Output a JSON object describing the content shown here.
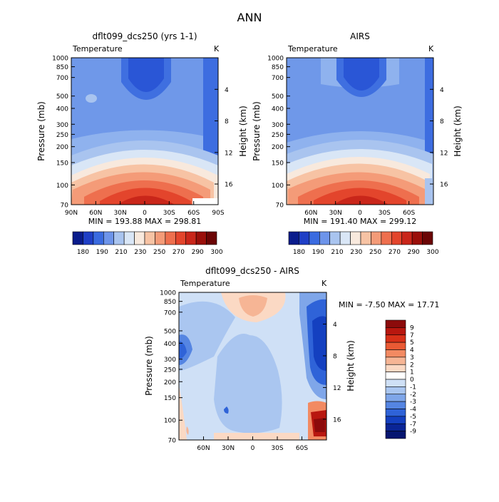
{
  "chart_data": [
    {
      "type": "heatmap",
      "title": "dflt099_dcs250 (yrs 1-1)",
      "field_label": "Temperature",
      "units": "K",
      "ylabel": "Pressure (mb)",
      "ylabel2": "Height (km)",
      "pressure_ticks": [
        "70",
        "100",
        "150",
        "200",
        "250",
        "300",
        "400",
        "500",
        "700",
        "850",
        "1000"
      ],
      "height_ticks": [
        "4",
        "8",
        "12",
        "16"
      ],
      "lat_ticks": [
        "90N",
        "60N",
        "30N",
        "0",
        "30S",
        "60S",
        "90S"
      ],
      "min": "193.88",
      "max": "298.81",
      "stats": "MIN = 193.88   MAX = 298.81",
      "colorbar_labels": [
        "180",
        "190",
        "210",
        "230",
        "250",
        "270",
        "290",
        "300"
      ],
      "colorbar_colors": [
        "#0a1c8c",
        "#1f3fc6",
        "#3a6be0",
        "#6d94ea",
        "#a9c4ef",
        "#d9e6f6",
        "#f8e9dd",
        "#f7c3a4",
        "#f49b78",
        "#ee6f4e",
        "#e3452c",
        "#c9261a",
        "#9a0f0a",
        "#6b0505"
      ]
    },
    {
      "type": "heatmap",
      "title": "AIRS",
      "field_label": "Temperature",
      "units": "K",
      "ylabel": "Pressure (mb)",
      "ylabel2": "Height (km)",
      "pressure_ticks": [
        "70",
        "100",
        "150",
        "200",
        "250",
        "300",
        "400",
        "500",
        "700",
        "850",
        "1000"
      ],
      "height_ticks": [
        "4",
        "8",
        "12",
        "16"
      ],
      "lat_ticks": [
        "60N",
        "30N",
        "0",
        "30S",
        "60S"
      ],
      "min": "191.40",
      "max": "299.12",
      "stats": "MIN = 191.40   MAX = 299.12",
      "colorbar_labels": [
        "180",
        "190",
        "210",
        "230",
        "250",
        "270",
        "290",
        "300"
      ],
      "colorbar_colors": [
        "#0a1c8c",
        "#1f3fc6",
        "#3a6be0",
        "#6d94ea",
        "#a9c4ef",
        "#d9e6f6",
        "#f8e9dd",
        "#f7c3a4",
        "#f49b78",
        "#ee6f4e",
        "#e3452c",
        "#c9261a",
        "#9a0f0a",
        "#6b0505"
      ]
    },
    {
      "type": "heatmap",
      "title": "dflt099_dcs250 - AIRS",
      "field_label": "Temperature",
      "units": "K",
      "ylabel": "Pressure (mb)",
      "ylabel2": "Height (km)",
      "pressure_ticks": [
        "70",
        "100",
        "150",
        "200",
        "250",
        "300",
        "400",
        "500",
        "700",
        "850",
        "1000"
      ],
      "height_ticks": [
        "4",
        "8",
        "12",
        "16"
      ],
      "lat_ticks": [
        "60N",
        "30N",
        "0",
        "30S",
        "60S"
      ],
      "min": "-7.50",
      "max": "17.71",
      "stats": "MIN =  -7.50   MAX =  17.71",
      "colorbar_labels": [
        "9",
        "7",
        "5",
        "4",
        "3",
        "2",
        "1",
        "0",
        "-1",
        "-2",
        "-3",
        "-4",
        "-5",
        "-7",
        "-9"
      ],
      "colorbar_colors": [
        "#8c0b0b",
        "#b8170f",
        "#d83018",
        "#ea5a34",
        "#f28a62",
        "#f6b595",
        "#fbd9c4",
        "#ffffff",
        "#cfe0f6",
        "#aac6f0",
        "#7fa6e9",
        "#5585e2",
        "#2f63d8",
        "#1440c0",
        "#0a2596",
        "#061670"
      ]
    }
  ],
  "page_title": "ANN"
}
